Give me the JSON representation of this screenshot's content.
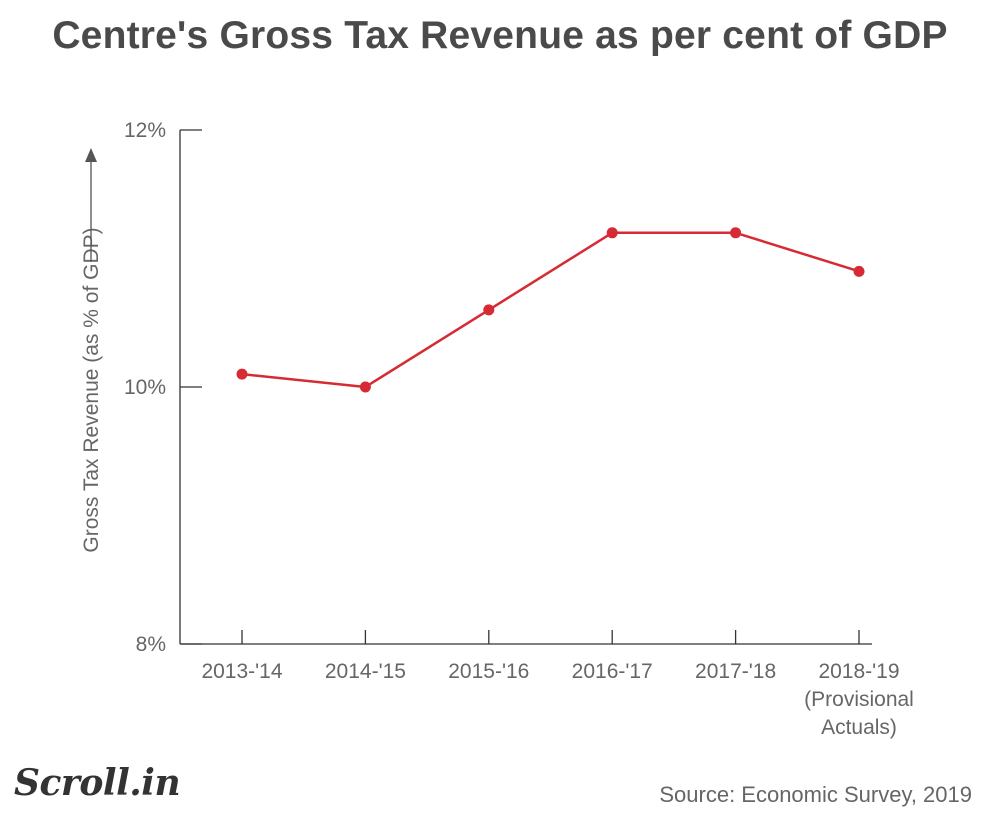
{
  "header": {
    "title": "Centre's Gross Tax Revenue as per cent of GDP"
  },
  "chart_data": {
    "type": "line",
    "title": "Centre's Gross Tax Revenue as per cent of GDP",
    "xlabel": "",
    "ylabel": "Gross Tax Revenue (as % of GDP)",
    "ylim": [
      8,
      12
    ],
    "yticks": [
      "8%",
      "10%",
      "12%"
    ],
    "ytick_values": [
      8,
      10,
      12
    ],
    "categories": [
      [
        "2013-'14"
      ],
      [
        "2014-'15"
      ],
      [
        "2015-'16"
      ],
      [
        "2016-'17"
      ],
      [
        "2017-'18"
      ],
      [
        "2018-'19",
        "(Provisional",
        "Actuals)"
      ]
    ],
    "series": [
      {
        "values": [
          10.1,
          10.0,
          10.6,
          11.2,
          11.2,
          10.9
        ],
        "color": "#d62b34"
      }
    ],
    "grid": false,
    "legend": "none"
  },
  "footer": {
    "logo": "Scroll.in",
    "source": "Source: Economic Survey, 2019"
  }
}
